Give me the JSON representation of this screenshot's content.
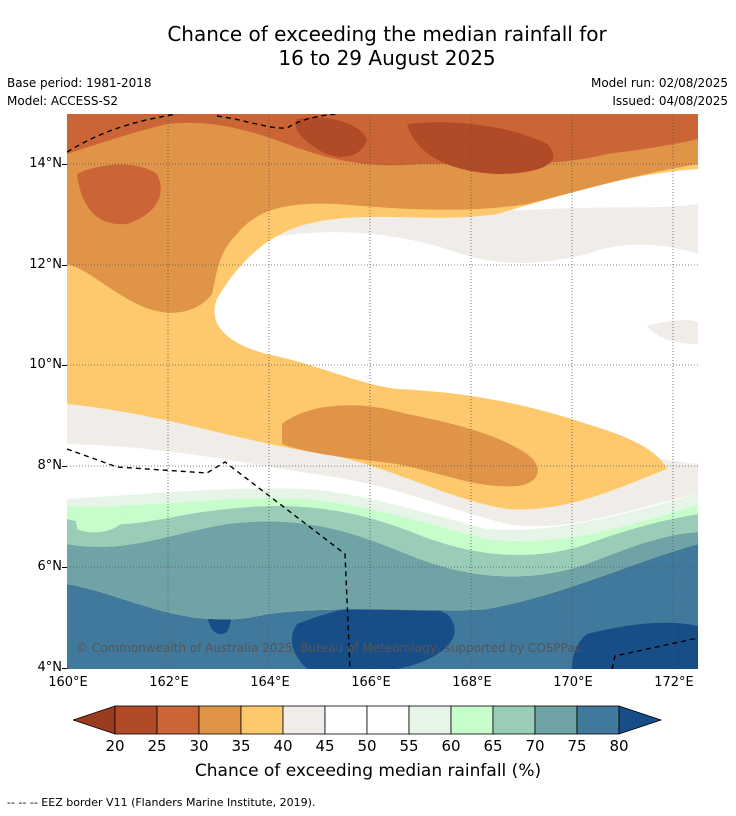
{
  "title_line1": "Chance of exceeding the median rainfall for",
  "title_line2": "16 to 29 August 2025",
  "base_period": "Base period: 1981-2018",
  "model": "Model: ACCESS-S2",
  "model_run": "Model run: 02/08/2025",
  "issued": "Issued: 04/08/2025",
  "copyright": "© Commonwealth of Australia 2025, Bureau of Meteorology, supported by COSPPac",
  "lat_labels": [
    "14°N",
    "12°N",
    "10°N",
    "8°N",
    "6°N",
    "4°N"
  ],
  "lon_labels": [
    "160°E",
    "162°E",
    "164°E",
    "166°E",
    "168°E",
    "170°E",
    "172°E"
  ],
  "colorbar_ticks": [
    "20",
    "25",
    "30",
    "35",
    "40",
    "45",
    "50",
    "55",
    "60",
    "65",
    "70",
    "75",
    "80"
  ],
  "colorbar_colors": [
    "#9a3b22",
    "#b14b27",
    "#cc6535",
    "#e09448",
    "#fec96c",
    "#f0ede9",
    "#ffffff",
    "#ffffff",
    "#e7f5e8",
    "#c7fccb",
    "#9acdb7",
    "#6fa3a6",
    "#41799c",
    "#184e88"
  ],
  "colorbar_title": "Chance of exceeding median rainfall (%)",
  "footnote": "-- -- -- EEZ border V11 (Flanders Marine Institute, 2019)."
}
